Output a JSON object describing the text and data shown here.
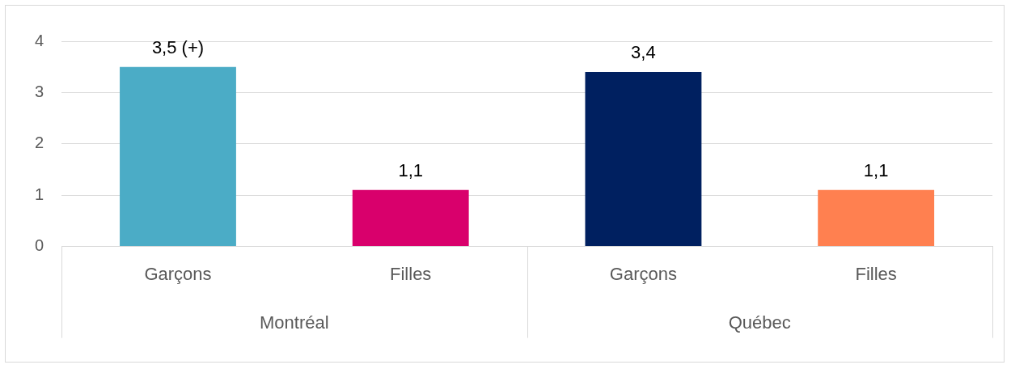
{
  "chart_data": {
    "type": "bar",
    "categories": [
      "Garçons",
      "Filles",
      "Garçons",
      "Filles"
    ],
    "values": [
      3.5,
      1.1,
      3.4,
      1.1
    ],
    "colors": [
      "#4bacc6",
      "#d9006c",
      "#002060",
      "#ff8050"
    ],
    "value_labels": [
      "3,5 (+)",
      "1,1",
      "3,4",
      "1,1"
    ],
    "annotations": [
      "Montréal",
      "Québec"
    ],
    "ylim": [
      0,
      4
    ],
    "yticks": [
      0,
      1,
      2,
      3,
      4
    ],
    "grid": "y",
    "legend": false
  }
}
